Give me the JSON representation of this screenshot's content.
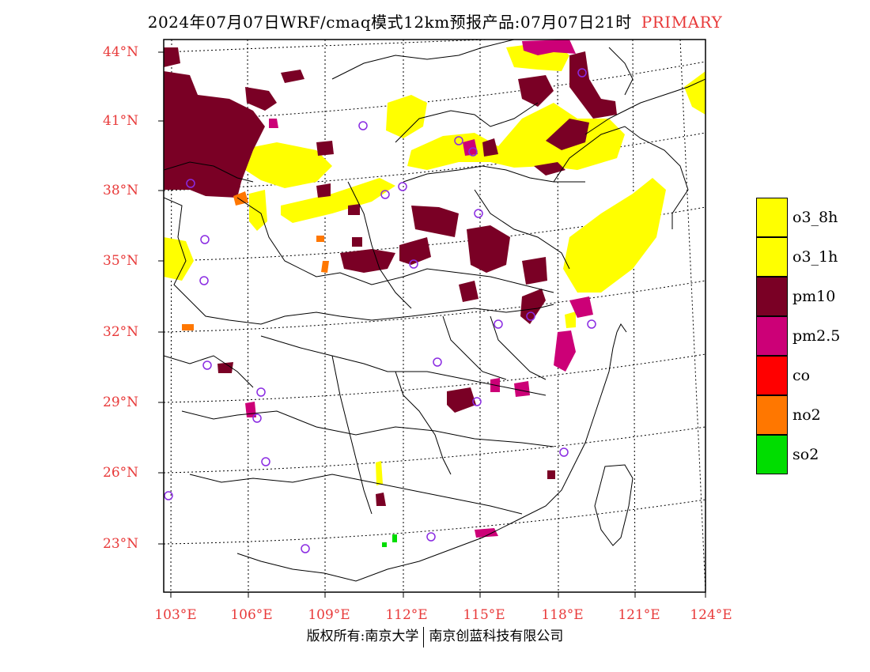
{
  "title": {
    "main": "2024年07月07日WRF/cmaq模式12km预报产品:07月07日21时",
    "tag": "PRIMARY"
  },
  "axes": {
    "lat_labels": [
      "44°N",
      "41°N",
      "38°N",
      "35°N",
      "32°N",
      "29°N",
      "26°N",
      "23°N"
    ],
    "lon_labels": [
      "103°E",
      "106°E",
      "109°E",
      "112°E",
      "115°E",
      "118°E",
      "121°E",
      "124°E"
    ]
  },
  "legend": [
    {
      "label": "o3_8h",
      "color": "#ffff00"
    },
    {
      "label": "o3_1h",
      "color": "#ffff00"
    },
    {
      "label": "pm10",
      "color": "#7a0025"
    },
    {
      "label": "pm2.5",
      "color": "#cc0077"
    },
    {
      "label": "co",
      "color": "#ff0000"
    },
    {
      "label": "no2",
      "color": "#ff7700"
    },
    {
      "label": "so2",
      "color": "#00dd00"
    }
  ],
  "footer": {
    "left": "版权所有:南京大学",
    "right": "南京创蓝科技有限公司"
  }
}
